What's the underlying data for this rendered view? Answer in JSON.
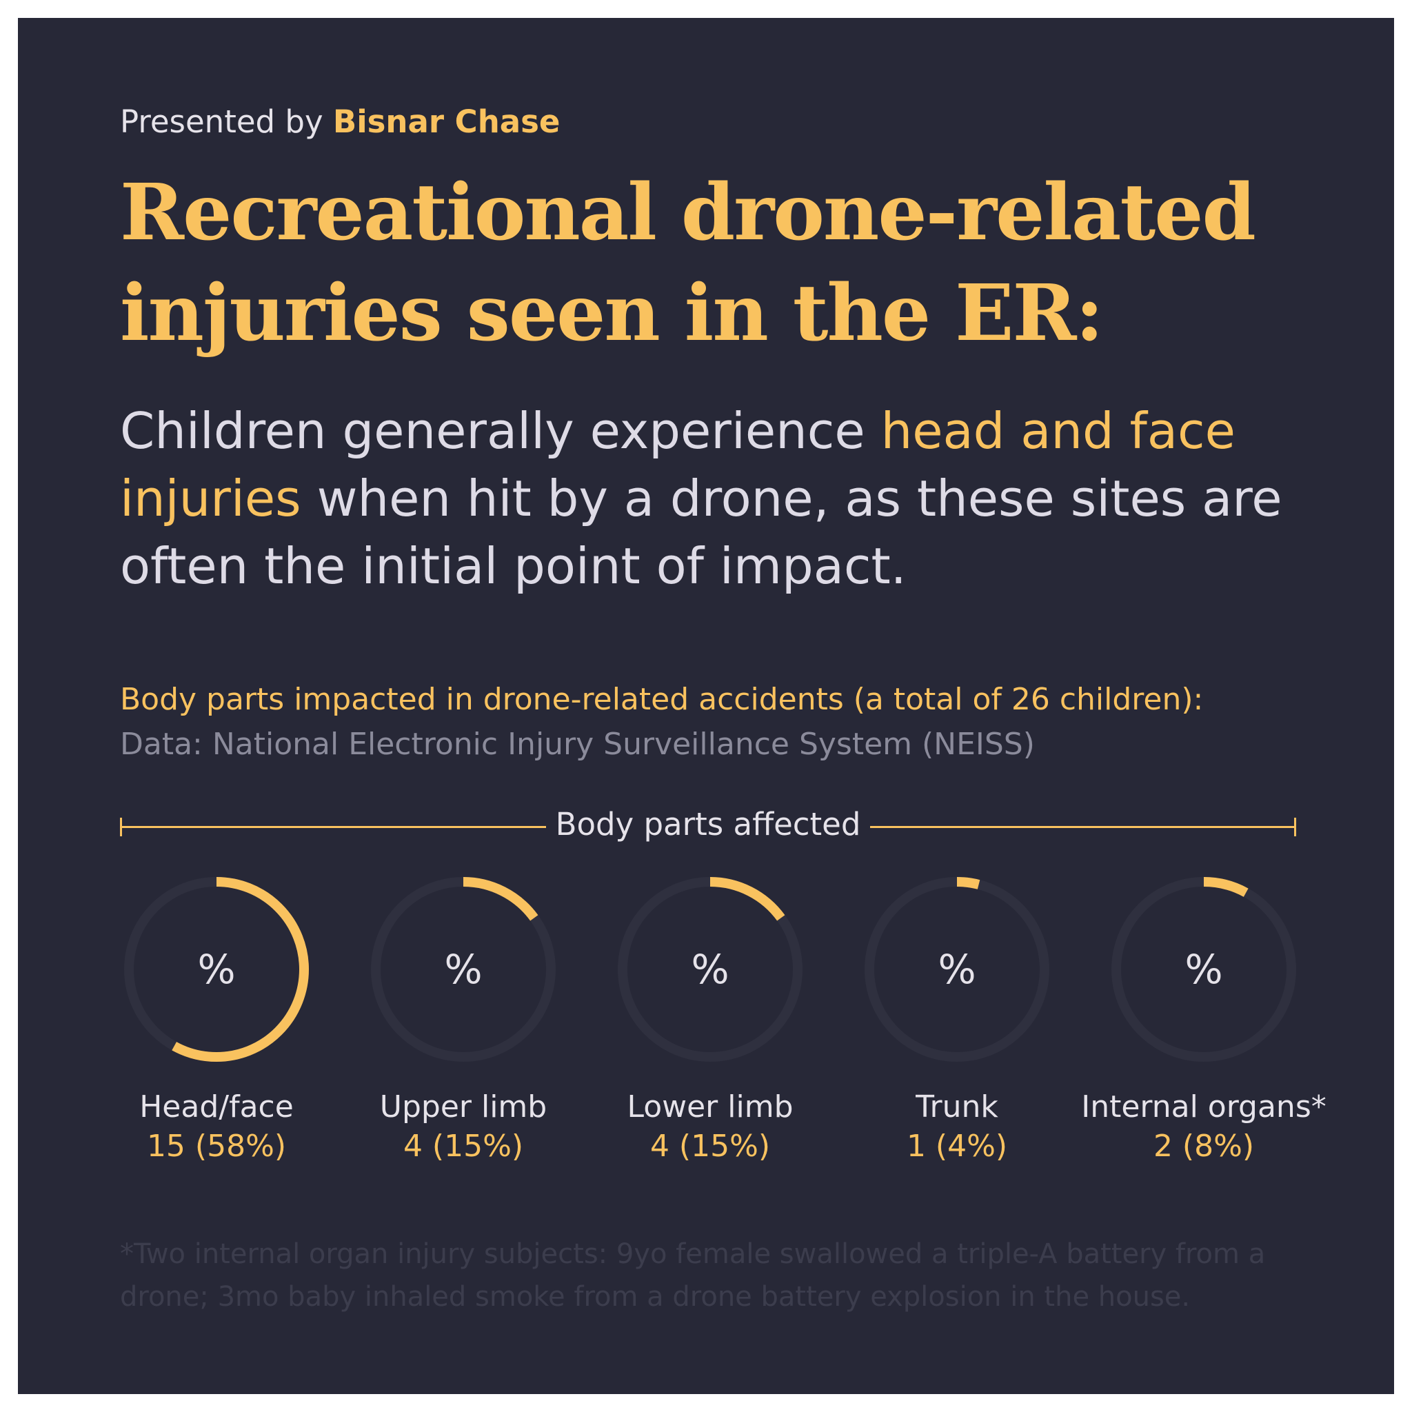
{
  "header": {
    "presented_by": "Presented by",
    "brand": "Bisnar Chase",
    "title_line1": "Recreational drone-related",
    "title_line2": "injuries seen in the ER:"
  },
  "intro": {
    "part1": "Children generally experience ",
    "highlight": "head and face injuries",
    "part2": " when hit by a drone, as these sites are often the initial point of impact."
  },
  "colors": {
    "background": "#272837",
    "accent": "#f9c25f",
    "track": "#2f303f"
  },
  "chart_data": {
    "type": "pie",
    "title": "Body parts impacted in drone-related accidents (a total of 26 children):",
    "subtitle": "Data: National Electronic Injury Surveillance System (NEISS)",
    "axis_label": "Body parts affected",
    "center_symbol": "%",
    "total": 26,
    "categories": [
      "Head/face",
      "Upper limb",
      "Lower limb",
      "Trunk",
      "Internal organs*"
    ],
    "counts": [
      15,
      4,
      4,
      1,
      2
    ],
    "percents": [
      58,
      15,
      15,
      4,
      8
    ],
    "value_labels": [
      "15 (58%)",
      "4 (15%)",
      "4 (15%)",
      "1 (4%)",
      "2 (8%)"
    ]
  },
  "footnote": "*Two internal organ injury subjects: 9yo female swallowed a triple-A battery from a drone; 3mo baby inhaled smoke from a drone battery explosion in the house."
}
